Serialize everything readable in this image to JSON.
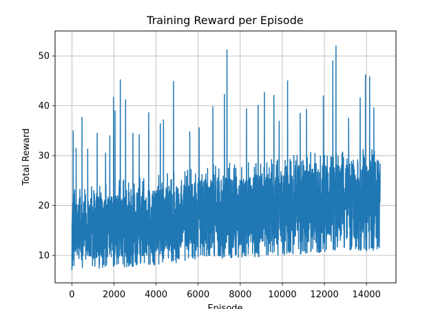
{
  "chart_data": {
    "type": "line",
    "title": "Training Reward per Episode",
    "xlabel": "Episode",
    "ylabel": "Total Reward",
    "xlim": [
      -800,
      15400
    ],
    "ylim": [
      4.5,
      55
    ],
    "x_ticks": [
      0,
      2000,
      4000,
      6000,
      8000,
      10000,
      12000,
      14000
    ],
    "y_ticks": [
      10,
      20,
      30,
      40,
      50
    ],
    "grid": true,
    "series_color": "#1f77b4",
    "series": [
      {
        "x_range": [
          0,
          14650
        ],
        "baseline_trend": [
          {
            "x": 0,
            "low": 7,
            "typical_high": 22
          },
          {
            "x": 2000,
            "low": 7.5,
            "typical_high": 23
          },
          {
            "x": 4000,
            "low": 8,
            "typical_high": 24
          },
          {
            "x": 6000,
            "low": 9,
            "typical_high": 26
          },
          {
            "x": 8000,
            "low": 9.5,
            "typical_high": 27
          },
          {
            "x": 10000,
            "low": 10,
            "typical_high": 28
          },
          {
            "x": 12000,
            "low": 10.5,
            "typical_high": 29
          },
          {
            "x": 14650,
            "low": 11,
            "typical_high": 30
          }
        ],
        "peaks": [
          {
            "x": 60,
            "y": 35
          },
          {
            "x": 200,
            "y": 31.5
          },
          {
            "x": 480,
            "y": 37.7
          },
          {
            "x": 750,
            "y": 31.3
          },
          {
            "x": 1200,
            "y": 34.5
          },
          {
            "x": 1600,
            "y": 30.5
          },
          {
            "x": 1800,
            "y": 34
          },
          {
            "x": 1980,
            "y": 41.7
          },
          {
            "x": 2050,
            "y": 39
          },
          {
            "x": 2300,
            "y": 45.2
          },
          {
            "x": 2550,
            "y": 41.2
          },
          {
            "x": 2900,
            "y": 34.5
          },
          {
            "x": 3200,
            "y": 34.2
          },
          {
            "x": 3650,
            "y": 38.6
          },
          {
            "x": 4200,
            "y": 36.4
          },
          {
            "x": 4350,
            "y": 37.2
          },
          {
            "x": 4830,
            "y": 44.9
          },
          {
            "x": 5600,
            "y": 34.8
          },
          {
            "x": 6050,
            "y": 35.6
          },
          {
            "x": 6700,
            "y": 39.8
          },
          {
            "x": 7250,
            "y": 42.3
          },
          {
            "x": 7370,
            "y": 51.2
          },
          {
            "x": 8300,
            "y": 39.4
          },
          {
            "x": 8850,
            "y": 40.1
          },
          {
            "x": 9150,
            "y": 42.7
          },
          {
            "x": 9600,
            "y": 42.1
          },
          {
            "x": 9850,
            "y": 36.9
          },
          {
            "x": 10250,
            "y": 45
          },
          {
            "x": 10850,
            "y": 38.5
          },
          {
            "x": 11150,
            "y": 39.3
          },
          {
            "x": 11950,
            "y": 42
          },
          {
            "x": 12400,
            "y": 49
          },
          {
            "x": 12550,
            "y": 52
          },
          {
            "x": 13150,
            "y": 37.5
          },
          {
            "x": 13700,
            "y": 41.6
          },
          {
            "x": 13950,
            "y": 46.2
          },
          {
            "x": 14150,
            "y": 45.8
          },
          {
            "x": 14350,
            "y": 39.6
          },
          {
            "x": 14650,
            "y": 28.4
          }
        ]
      }
    ]
  }
}
